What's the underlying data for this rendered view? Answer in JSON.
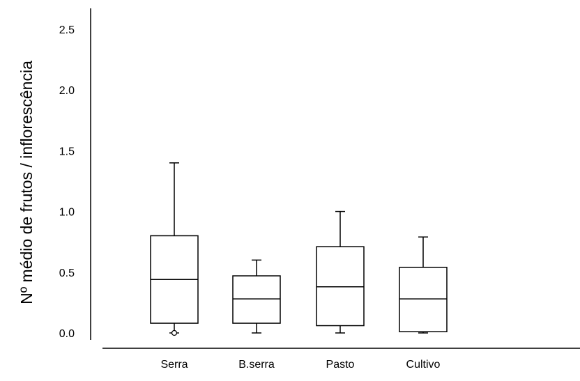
{
  "chart_data": {
    "type": "boxplot",
    "title": "",
    "xlabel": "",
    "ylabel": "Nº médio de frutos / inflorescência",
    "ylim": [
      0,
      2.5
    ],
    "yticks": [
      "0.0",
      "0.5",
      "1.0",
      "1.5",
      "2.0",
      "2.5"
    ],
    "grid": false,
    "categories": [
      "Serra",
      "B.serra",
      "Pasto",
      "Cultivo"
    ],
    "boxes": [
      {
        "category": "Serra",
        "min": 0.0,
        "q1": 0.08,
        "median": 0.44,
        "q3": 0.8,
        "max": 1.4,
        "outliers": [
          0.0
        ]
      },
      {
        "category": "B.serra",
        "min": 0.0,
        "q1": 0.08,
        "median": 0.28,
        "q3": 0.47,
        "max": 0.6,
        "outliers": []
      },
      {
        "category": "Pasto",
        "min": 0.0,
        "q1": 0.06,
        "median": 0.38,
        "q3": 0.71,
        "max": 1.0,
        "outliers": []
      },
      {
        "category": "Cultivo",
        "min": 0.0,
        "q1": 0.01,
        "median": 0.28,
        "q3": 0.54,
        "max": 0.79,
        "outliers": []
      }
    ]
  }
}
